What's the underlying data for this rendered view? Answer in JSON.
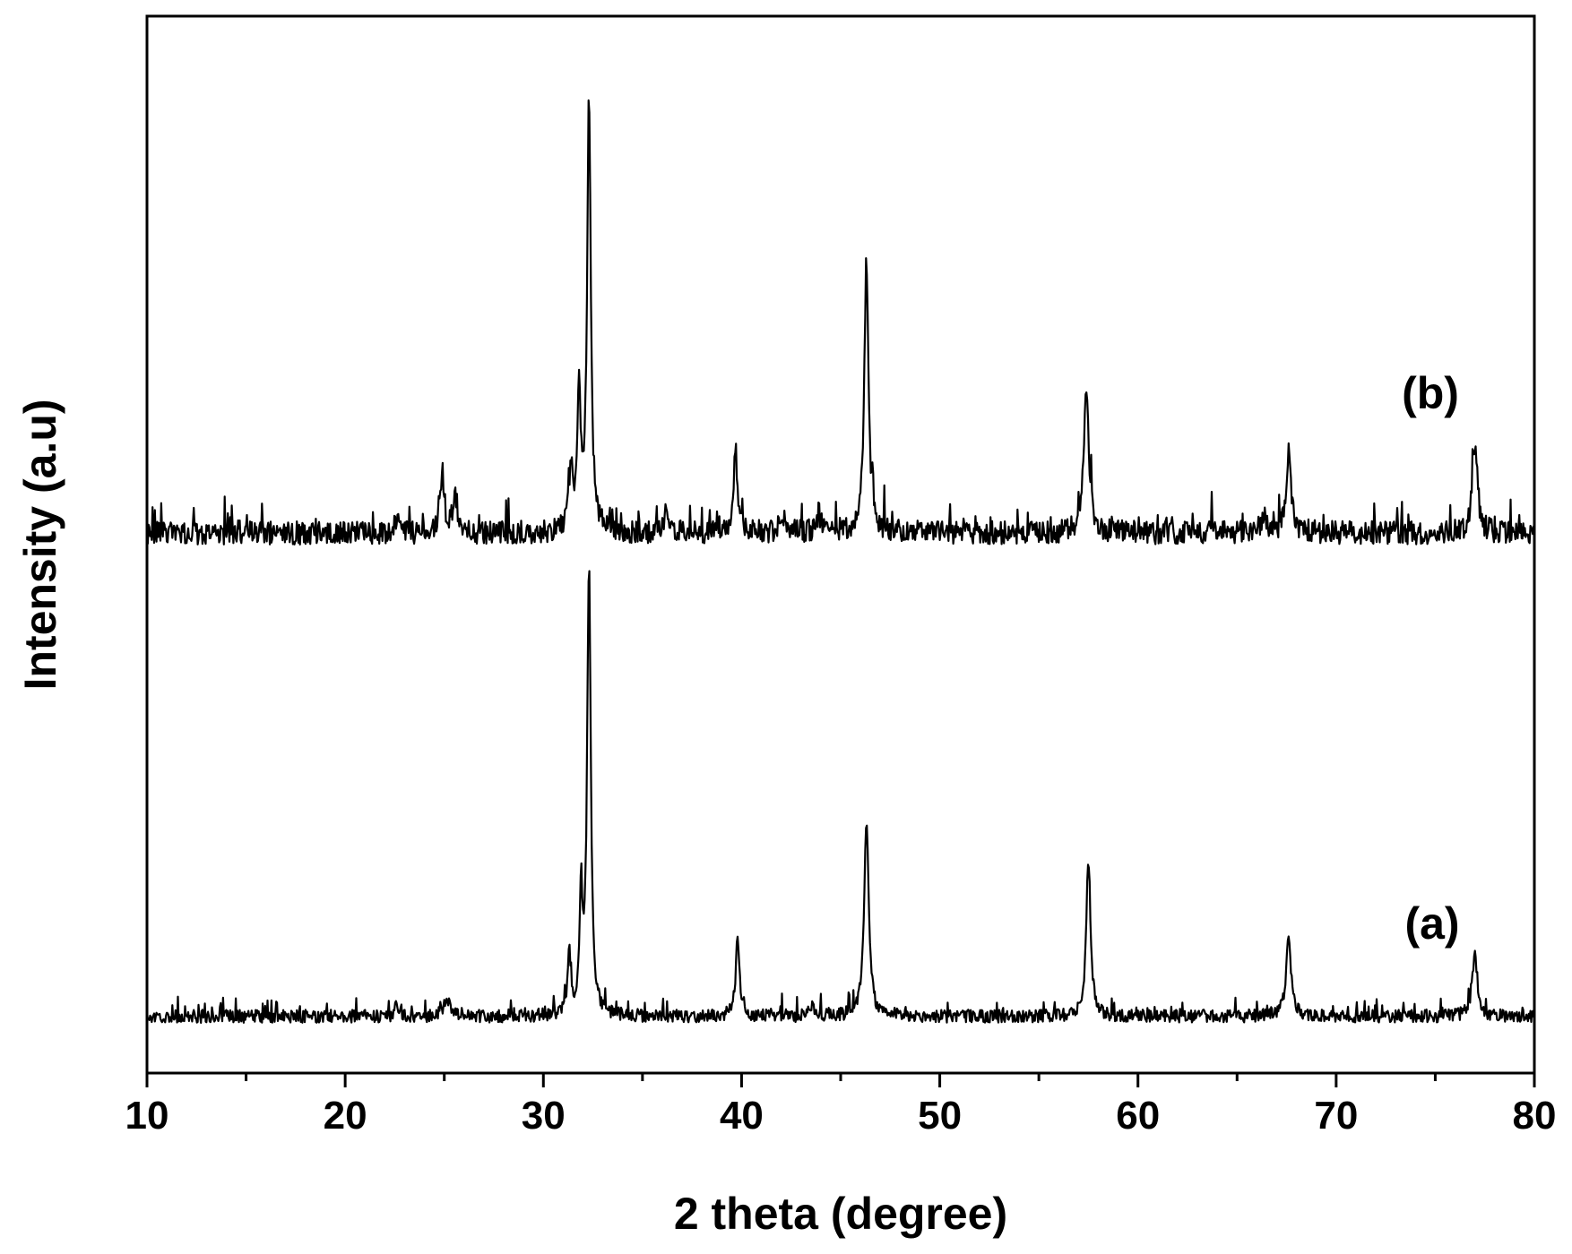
{
  "chart_data": {
    "type": "line",
    "xlabel": "2 theta (degree)",
    "ylabel": "Intensity (a.u)",
    "xlim": [
      10,
      80
    ],
    "xticks": [
      "10",
      "20",
      "30",
      "40",
      "50",
      "60",
      "70",
      "80"
    ],
    "minor_ticks_between": 1,
    "y_ticks_shown": false,
    "grid": false,
    "line_color": "#000000",
    "series": [
      {
        "name": "(a)",
        "stacked_offset": 0,
        "baseline_noise": 0.028,
        "peaks": [
          {
            "x": 22.6,
            "y": 0.03,
            "width": 0.2
          },
          {
            "x": 25.1,
            "y": 0.04,
            "width": 0.35
          },
          {
            "x": 31.3,
            "y": 0.13,
            "width": 0.2
          },
          {
            "x": 31.9,
            "y": 0.25,
            "width": 0.18
          },
          {
            "x": 32.3,
            "y": 0.96,
            "width": 0.22
          },
          {
            "x": 39.8,
            "y": 0.18,
            "width": 0.22
          },
          {
            "x": 43.5,
            "y": 0.02,
            "width": 0.3
          },
          {
            "x": 46.3,
            "y": 0.41,
            "width": 0.28
          },
          {
            "x": 57.5,
            "y": 0.34,
            "width": 0.26
          },
          {
            "x": 67.6,
            "y": 0.17,
            "width": 0.3
          },
          {
            "x": 77.0,
            "y": 0.13,
            "width": 0.32
          }
        ]
      },
      {
        "name": "(b)",
        "stacked_offset": 1,
        "baseline_noise": 0.05,
        "peaks": [
          {
            "x": 22.6,
            "y": 0.03,
            "width": 0.2
          },
          {
            "x": 24.9,
            "y": 0.13,
            "width": 0.25
          },
          {
            "x": 25.5,
            "y": 0.07,
            "width": 0.25
          },
          {
            "x": 31.4,
            "y": 0.13,
            "width": 0.25
          },
          {
            "x": 31.8,
            "y": 0.31,
            "width": 0.18
          },
          {
            "x": 32.3,
            "y": 0.93,
            "width": 0.22
          },
          {
            "x": 36.2,
            "y": 0.04,
            "width": 0.3
          },
          {
            "x": 39.7,
            "y": 0.18,
            "width": 0.22
          },
          {
            "x": 42.1,
            "y": 0.04,
            "width": 0.3
          },
          {
            "x": 43.9,
            "y": 0.04,
            "width": 0.3
          },
          {
            "x": 46.3,
            "y": 0.58,
            "width": 0.26
          },
          {
            "x": 57.4,
            "y": 0.31,
            "width": 0.3
          },
          {
            "x": 66.3,
            "y": 0.03,
            "width": 0.3
          },
          {
            "x": 67.6,
            "y": 0.18,
            "width": 0.3
          },
          {
            "x": 77.0,
            "y": 0.2,
            "width": 0.3
          }
        ]
      }
    ]
  }
}
